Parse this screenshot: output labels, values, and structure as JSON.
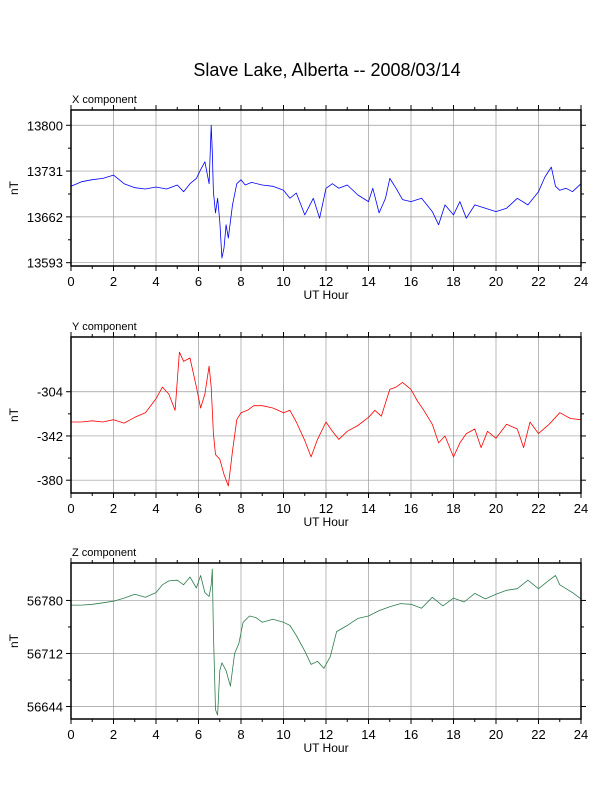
{
  "title": "Slave Lake, Alberta -- 2008/03/14",
  "chart_data": [
    {
      "type": "line",
      "panel_label": "X component",
      "xlabel": "UT Hour",
      "ylabel": "nT",
      "xlim": [
        0,
        24
      ],
      "ylim": [
        13588,
        13823
      ],
      "xticks": [
        0,
        2,
        4,
        6,
        8,
        10,
        12,
        14,
        16,
        18,
        20,
        22,
        24
      ],
      "yticks": [
        13593,
        13662,
        13731,
        13800
      ],
      "grid": true,
      "series": [
        {
          "color": "#0000ff",
          "x": [
            0,
            0.5,
            1,
            1.5,
            2,
            2.5,
            3,
            3.5,
            4,
            4.5,
            5,
            5.3,
            5.6,
            5.9,
            6.1,
            6.3,
            6.5,
            6.6,
            6.65,
            6.7,
            6.8,
            6.9,
            7.0,
            7.1,
            7.2,
            7.3,
            7.4,
            7.6,
            7.8,
            8.0,
            8.2,
            8.5,
            9,
            9.5,
            10,
            10.3,
            10.6,
            11.0,
            11.4,
            11.7,
            12.0,
            12.3,
            12.6,
            13,
            13.5,
            14,
            14.2,
            14.5,
            14.8,
            15.0,
            15.3,
            15.6,
            16,
            16.5,
            17.0,
            17.3,
            17.6,
            18.0,
            18.3,
            18.6,
            19.0,
            19.5,
            20,
            20.5,
            21,
            21.5,
            22,
            22.3,
            22.6,
            22.8,
            23.0,
            23.3,
            23.6,
            24
          ],
          "values": [
            13708,
            13715,
            13718,
            13720,
            13725,
            13712,
            13706,
            13704,
            13707,
            13704,
            13710,
            13700,
            13712,
            13720,
            13733,
            13745,
            13712,
            13800,
            13760,
            13700,
            13668,
            13690,
            13655,
            13600,
            13615,
            13650,
            13630,
            13680,
            13712,
            13718,
            13710,
            13714,
            13710,
            13708,
            13702,
            13690,
            13698,
            13665,
            13690,
            13660,
            13705,
            13712,
            13705,
            13710,
            13695,
            13685,
            13705,
            13668,
            13690,
            13720,
            13705,
            13688,
            13685,
            13690,
            13670,
            13650,
            13680,
            13665,
            13685,
            13660,
            13680,
            13675,
            13670,
            13675,
            13690,
            13680,
            13700,
            13722,
            13737,
            13708,
            13702,
            13705,
            13700,
            13712
          ]
        }
      ]
    },
    {
      "type": "line",
      "panel_label": "Y component",
      "xlabel": "UT Hour",
      "ylabel": "nT",
      "xlim": [
        0,
        24
      ],
      "ylim": [
        -391,
        -257
      ],
      "xticks": [
        0,
        2,
        4,
        6,
        8,
        10,
        12,
        14,
        16,
        18,
        20,
        22,
        24
      ],
      "yticks": [
        -304,
        -342,
        -380
      ],
      "grid": true,
      "series": [
        {
          "color": "#ff0000",
          "x": [
            0,
            0.5,
            1,
            1.5,
            2,
            2.5,
            3,
            3.5,
            4,
            4.3,
            4.6,
            4.9,
            5.1,
            5.3,
            5.6,
            5.9,
            6.1,
            6.3,
            6.5,
            6.6,
            6.7,
            6.8,
            7.0,
            7.2,
            7.4,
            7.6,
            7.8,
            8.0,
            8.3,
            8.6,
            9,
            9.5,
            10,
            10.3,
            10.6,
            11.0,
            11.3,
            11.6,
            12.0,
            12.3,
            12.6,
            13.0,
            13.5,
            14,
            14.3,
            14.6,
            15.0,
            15.3,
            15.6,
            16.0,
            16.3,
            16.6,
            17.0,
            17.3,
            17.6,
            18.0,
            18.3,
            18.6,
            19.0,
            19.3,
            19.6,
            20.0,
            20.5,
            21.0,
            21.3,
            21.6,
            22.0,
            22.5,
            23.0,
            23.5,
            24
          ],
          "values": [
            -330,
            -330,
            -329,
            -330,
            -328,
            -331,
            -326,
            -322,
            -310,
            -300,
            -306,
            -320,
            -270,
            -278,
            -275,
            -300,
            -318,
            -306,
            -282,
            -300,
            -340,
            -358,
            -362,
            -375,
            -385,
            -355,
            -328,
            -322,
            -320,
            -316,
            -316,
            -318,
            -322,
            -320,
            -330,
            -346,
            -360,
            -345,
            -330,
            -338,
            -345,
            -338,
            -333,
            -326,
            -320,
            -325,
            -302,
            -300,
            -296,
            -302,
            -312,
            -320,
            -332,
            -348,
            -342,
            -360,
            -348,
            -340,
            -336,
            -352,
            -338,
            -344,
            -332,
            -336,
            -352,
            -330,
            -340,
            -332,
            -322,
            -327,
            -328
          ]
        }
      ]
    },
    {
      "type": "line",
      "panel_label": "Z component",
      "xlabel": "UT Hour",
      "ylabel": "nT",
      "xlim": [
        0,
        24
      ],
      "ylim": [
        56628,
        56828
      ],
      "xticks": [
        0,
        2,
        4,
        6,
        8,
        10,
        12,
        14,
        16,
        18,
        20,
        22,
        24
      ],
      "yticks": [
        56780,
        56712,
        56644
      ],
      "grid": true,
      "series": [
        {
          "color": "#2e7d4f",
          "x": [
            0,
            0.5,
            1,
            1.5,
            2,
            2.5,
            3,
            3.5,
            4,
            4.3,
            4.6,
            5.0,
            5.3,
            5.6,
            5.9,
            6.1,
            6.3,
            6.5,
            6.6,
            6.65,
            6.7,
            6.8,
            6.9,
            7.0,
            7.1,
            7.3,
            7.5,
            7.7,
            7.9,
            8.1,
            8.4,
            8.7,
            9.0,
            9.5,
            10.0,
            10.3,
            10.6,
            11.0,
            11.3,
            11.6,
            11.9,
            12.2,
            12.5,
            13.0,
            13.5,
            14.0,
            14.5,
            15.0,
            15.5,
            16.0,
            16.5,
            17.0,
            17.5,
            18.0,
            18.5,
            19.0,
            19.5,
            20.0,
            20.5,
            21.0,
            21.5,
            22.0,
            22.5,
            22.8,
            23.0,
            23.3,
            23.6,
            24
          ],
          "values": [
            56774,
            56774,
            56775,
            56777,
            56779,
            56783,
            56788,
            56784,
            56790,
            56800,
            56805,
            56806,
            56800,
            56810,
            56796,
            56812,
            56790,
            56785,
            56800,
            56820,
            56740,
            56640,
            56633,
            56690,
            56700,
            56690,
            56670,
            56712,
            56725,
            56752,
            56760,
            56758,
            56752,
            56756,
            56752,
            56748,
            56735,
            56715,
            56698,
            56702,
            56693,
            56708,
            56740,
            56748,
            56757,
            56760,
            56767,
            56772,
            56776,
            56775,
            56770,
            56784,
            56773,
            56783,
            56778,
            56789,
            56782,
            56788,
            56793,
            56795,
            56806,
            56795,
            56806,
            56812,
            56800,
            56795,
            56790,
            56782
          ]
        }
      ]
    }
  ]
}
